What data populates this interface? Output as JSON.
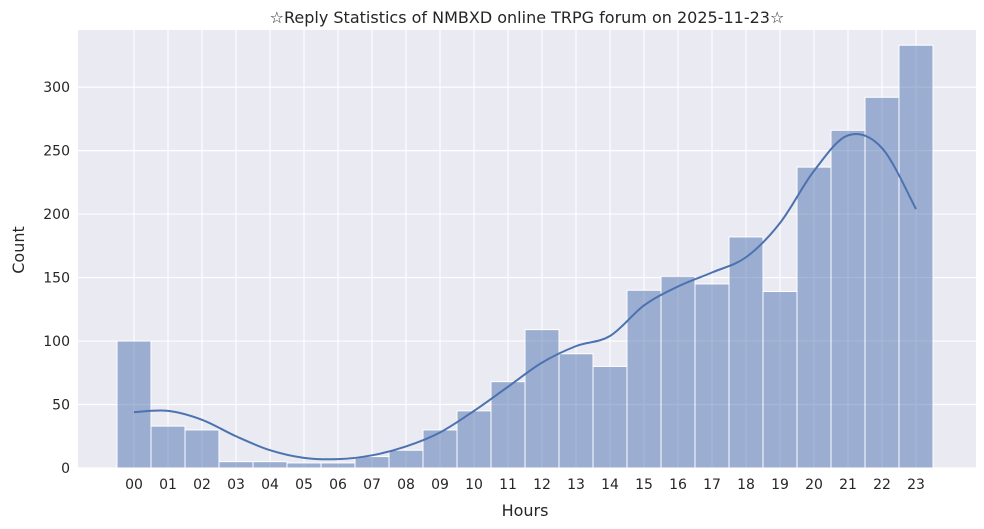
{
  "chart_data": {
    "type": "bar",
    "title": "☆Reply Statistics of NMBXD online TRPG forum on 2025-11-23☆",
    "xlabel": "Hours",
    "ylabel": "Count",
    "categories": [
      "00",
      "01",
      "02",
      "03",
      "04",
      "05",
      "06",
      "07",
      "08",
      "09",
      "10",
      "11",
      "12",
      "13",
      "14",
      "15",
      "16",
      "17",
      "18",
      "19",
      "20",
      "21",
      "22",
      "23"
    ],
    "values": [
      100,
      33,
      30,
      5,
      5,
      4,
      4,
      9,
      14,
      30,
      45,
      68,
      109,
      90,
      80,
      140,
      151,
      145,
      182,
      139,
      237,
      266,
      292,
      333
    ],
    "ylim": [
      0,
      345
    ],
    "yticks": [
      0,
      50,
      100,
      150,
      200,
      250,
      300
    ],
    "kde": [
      44,
      45,
      38,
      25,
      14,
      8,
      7,
      10,
      17,
      28,
      45,
      64,
      83,
      96,
      104,
      128,
      143,
      154,
      166,
      193,
      234,
      262,
      252,
      204
    ],
    "grid": true,
    "colors": {
      "background": "#eaeaf2",
      "bar": "#4c72b0",
      "bar_alpha": "0.5",
      "line": "#4c72b0",
      "grid": "#ffffff"
    }
  }
}
